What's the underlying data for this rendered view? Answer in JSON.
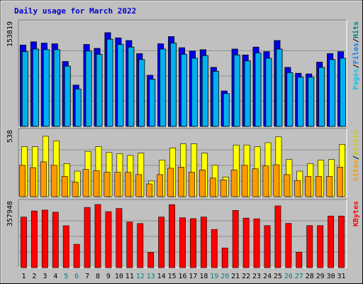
{
  "chart_data": {
    "type": "bar",
    "title": "Daily usage for March 2022",
    "categories": [
      "1",
      "2",
      "3",
      "4",
      "5",
      "6",
      "7",
      "8",
      "9",
      "10",
      "11",
      "12",
      "13",
      "14",
      "15",
      "16",
      "17",
      "18",
      "19",
      "20",
      "21",
      "22",
      "23",
      "24",
      "25",
      "26",
      "27",
      "28",
      "29",
      "30",
      "31"
    ],
    "weekend_days": [
      "5",
      "6",
      "12",
      "13",
      "19",
      "20",
      "26",
      "27"
    ],
    "colors": {
      "title": "#0000cc",
      "background": "#c0c0c0",
      "hits": "#0000ee",
      "files": "#00b0f0",
      "pages": "#00d0ff",
      "visits": "#ffff00",
      "sites": "#ff9900",
      "kbytes": "#ff0000",
      "weekend_label": "#008080",
      "weekday_label": "#000000"
    },
    "panels": [
      {
        "id": "hits-files-pages",
        "max_label": "153819",
        "ylim": [
          0,
          153819
        ],
        "legend": [
          {
            "name": "Pages",
            "color": "#00c8ff"
          },
          {
            "sep": "/"
          },
          {
            "name": "Files",
            "color": "#0080ff"
          },
          {
            "sep": "/"
          },
          {
            "name": "Hits",
            "color": "#008080"
          }
        ],
        "series": [
          {
            "name": "Hits",
            "values": [
              124000,
              129000,
              127000,
              126000,
              99000,
              63000,
              125000,
              119000,
              143000,
              135000,
              131000,
              111000,
              78000,
              126000,
              137000,
              120000,
              115000,
              117000,
              90000,
              54000,
              118000,
              109000,
              121000,
              114000,
              131000,
              90000,
              81000,
              80000,
              98000,
              111000,
              114000
            ]
          },
          {
            "name": "Files",
            "values": [
              114000,
              118000,
              117000,
              117000,
              92000,
              57000,
              115000,
              110000,
              133000,
              125000,
              121000,
              102000,
              72000,
              118000,
              127000,
              110000,
              104000,
              108000,
              84000,
              50000,
              109000,
              100000,
              112000,
              104000,
              118000,
              82000,
              75000,
              75000,
              90000,
              102000,
              104000
            ]
          }
        ]
      },
      {
        "id": "visits-sites",
        "max_label": "538",
        "ylim": [
          0,
          538
        ],
        "legend": [
          {
            "name": "Sites",
            "color": "#ff9900"
          },
          {
            "sep": "/"
          },
          {
            "name": "Visits",
            "color": "#cccc00"
          }
        ],
        "series": [
          {
            "name": "Visits",
            "values": [
              430,
              430,
              520,
              480,
              285,
              220,
              390,
              430,
              380,
              370,
              355,
              375,
              135,
              315,
              420,
              455,
              455,
              375,
              270,
              170,
              445,
              445,
              430,
              465,
              515,
              320,
              220,
              285,
              315,
              320,
              450
            ]
          },
          {
            "name": "Sites",
            "values": [
              270,
              250,
              300,
              270,
              175,
              125,
              235,
              225,
              210,
              210,
              210,
              190,
              110,
              190,
              245,
              255,
              210,
              230,
              160,
              145,
              230,
              270,
              240,
              265,
              275,
              190,
              140,
              175,
              175,
              175,
              255
            ]
          }
        ]
      },
      {
        "id": "kbytes",
        "max_label": "357948",
        "ylim": [
          0,
          357948
        ],
        "legend": [
          {
            "name": "KBytes",
            "color": "#ff0000"
          }
        ],
        "series": [
          {
            "name": "KBytes",
            "values": [
              290000,
              325000,
              330000,
              318000,
              240000,
              134000,
              345000,
              362000,
              321000,
              339000,
              262000,
              253000,
              88000,
              290000,
              361000,
              286000,
              281000,
              290000,
              219000,
              113000,
              328000,
              284000,
              280000,
              241000,
              354000,
              254000,
              89000,
              241000,
              241000,
              296000,
              296000
            ]
          }
        ]
      }
    ]
  }
}
